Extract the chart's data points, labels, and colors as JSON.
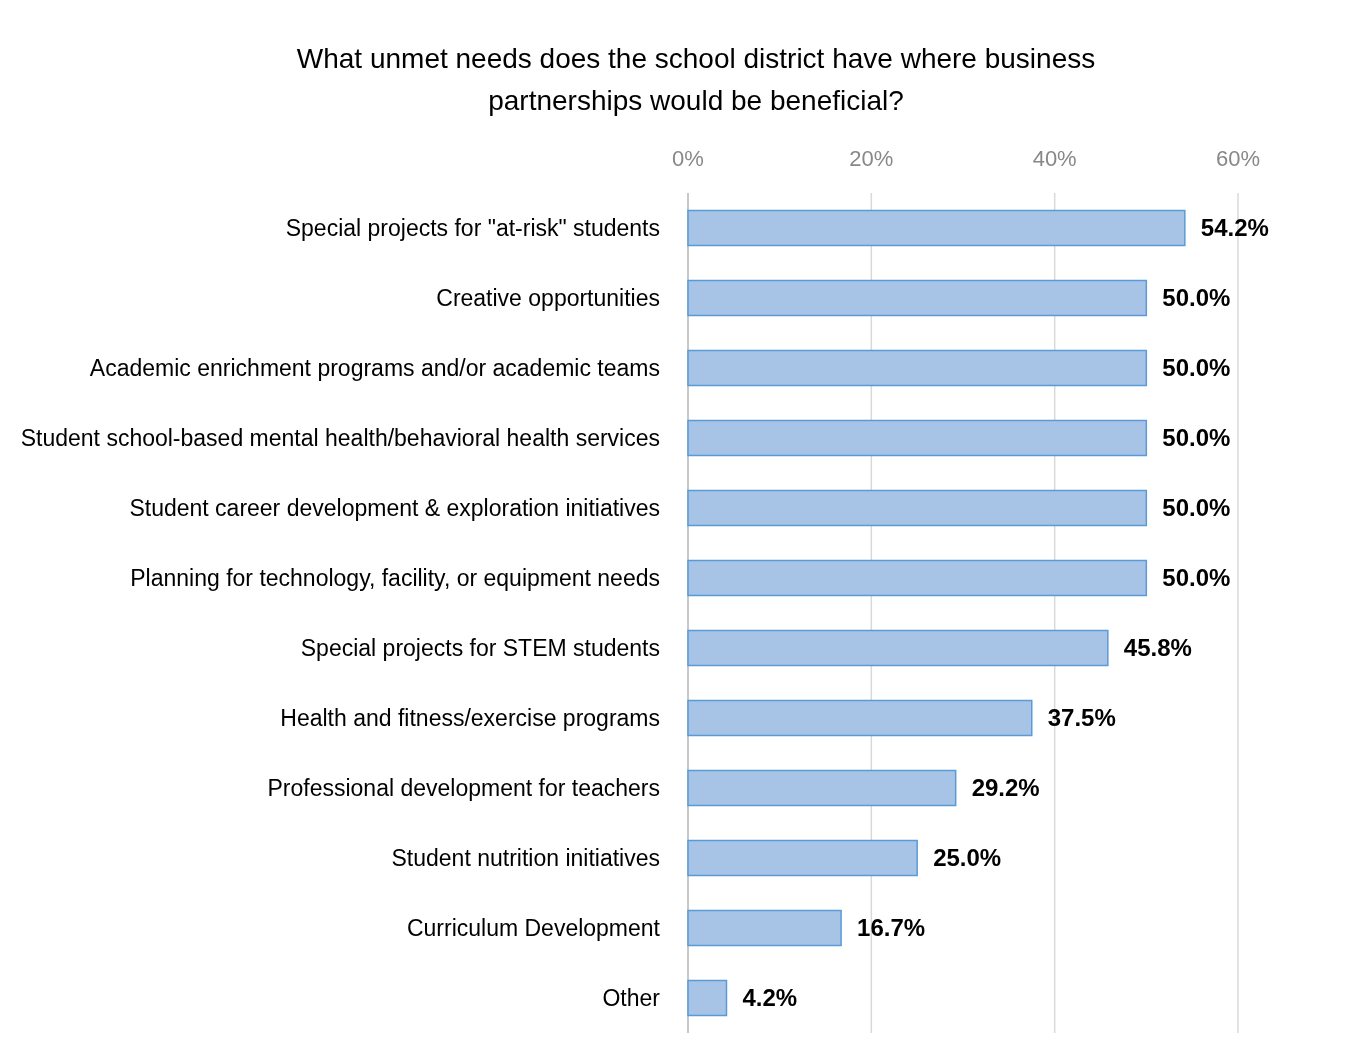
{
  "chart_data": {
    "type": "bar",
    "orientation": "horizontal",
    "title": "What unmet needs does the school district have where business partnerships would be beneficial?",
    "categories": [
      "Special projects for \"at-risk\" students",
      "Creative opportunities",
      "Academic enrichment programs and/or academic teams",
      "Student school-based mental health/behavioral health services",
      "Student career development & exploration initiatives",
      "Planning for technology, facility, or equipment needs",
      "Special projects for STEM students",
      "Health and fitness/exercise programs",
      "Professional development for teachers",
      "Student nutrition initiatives",
      "Curriculum Development",
      "Other"
    ],
    "values": [
      54.2,
      50.0,
      50.0,
      50.0,
      50.0,
      50.0,
      45.8,
      37.5,
      29.2,
      25.0,
      16.7,
      4.2
    ],
    "value_labels": [
      "54.2%",
      "50.0%",
      "50.0%",
      "50.0%",
      "50.0%",
      "50.0%",
      "45.8%",
      "37.5%",
      "29.2%",
      "25.0%",
      "16.7%",
      "4.2%"
    ],
    "color": "#a7c3e6",
    "xlim": [
      0,
      60
    ],
    "xticks": [
      {
        "value": 0,
        "label": "0%"
      },
      {
        "value": 20,
        "label": "20%"
      },
      {
        "value": 40,
        "label": "40%"
      },
      {
        "value": 60,
        "label": "60%"
      }
    ],
    "grid": "x"
  }
}
